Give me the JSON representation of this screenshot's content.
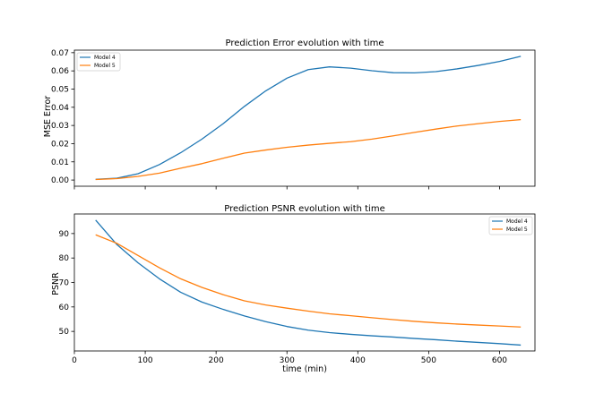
{
  "chart_data": [
    {
      "type": "line",
      "title": "Prediction Error evolution with time",
      "xlabel": "",
      "ylabel": "MSE Error",
      "xlim": [
        0,
        650
      ],
      "ylim": [
        -0.0034,
        0.0714
      ],
      "x_ticks": [
        0,
        100,
        200,
        300,
        400,
        500,
        600
      ],
      "x_tick_labels_shown": false,
      "y_ticks": [
        0.0,
        0.01,
        0.02,
        0.03,
        0.04,
        0.05,
        0.06,
        0.07
      ],
      "y_tick_labels": [
        "0.00",
        "0.01",
        "0.02",
        "0.03",
        "0.04",
        "0.05",
        "0.06",
        "0.07"
      ],
      "legend": "top-left",
      "x": [
        30,
        60,
        90,
        120,
        150,
        180,
        210,
        240,
        270,
        300,
        330,
        360,
        390,
        420,
        450,
        480,
        510,
        540,
        570,
        600,
        630
      ],
      "series": [
        {
          "name": "Model 4",
          "color": "#1f77b4",
          "values": [
            0.0004,
            0.001,
            0.0035,
            0.0085,
            0.015,
            0.0225,
            0.031,
            0.0405,
            0.049,
            0.056,
            0.0607,
            0.0622,
            0.0615,
            0.0601,
            0.059,
            0.0589,
            0.0596,
            0.0611,
            0.063,
            0.0652,
            0.068
          ]
        },
        {
          "name": "Model 5",
          "color": "#ff7f0e",
          "values": [
            0.0003,
            0.0008,
            0.002,
            0.0038,
            0.0065,
            0.009,
            0.012,
            0.0148,
            0.0165,
            0.018,
            0.0192,
            0.0202,
            0.0211,
            0.0225,
            0.0243,
            0.0262,
            0.028,
            0.0297,
            0.031,
            0.0322,
            0.0332
          ]
        }
      ]
    },
    {
      "type": "line",
      "title": "Prediction PSNR evolution with time",
      "xlabel": "time (min)",
      "ylabel": "PSNR",
      "xlim": [
        0,
        650
      ],
      "ylim": [
        42,
        98
      ],
      "x_ticks": [
        0,
        100,
        200,
        300,
        400,
        500,
        600
      ],
      "x_tick_labels": [
        "0",
        "100",
        "200",
        "300",
        "400",
        "500",
        "600"
      ],
      "y_ticks": [
        50,
        60,
        70,
        80,
        90
      ],
      "y_tick_labels": [
        "50",
        "60",
        "70",
        "80",
        "90"
      ],
      "legend": "top-right",
      "x": [
        30,
        60,
        90,
        120,
        150,
        180,
        210,
        240,
        270,
        300,
        330,
        360,
        390,
        420,
        450,
        480,
        510,
        540,
        570,
        600,
        630
      ],
      "series": [
        {
          "name": "Model 4",
          "color": "#1f77b4",
          "values": [
            95.5,
            85.5,
            78,
            71.5,
            66,
            62,
            59,
            56.3,
            54,
            52,
            50.5,
            49.5,
            48.8,
            48.2,
            47.7,
            47.1,
            46.6,
            46,
            45.5,
            45,
            44.4
          ]
        },
        {
          "name": "Model 5",
          "color": "#ff7f0e",
          "values": [
            89.5,
            86,
            81,
            76,
            71.5,
            68,
            65,
            62.5,
            60.8,
            59.5,
            58.3,
            57.2,
            56.4,
            55.6,
            54.8,
            54.1,
            53.5,
            53,
            52.6,
            52.2,
            51.8
          ]
        }
      ]
    }
  ]
}
